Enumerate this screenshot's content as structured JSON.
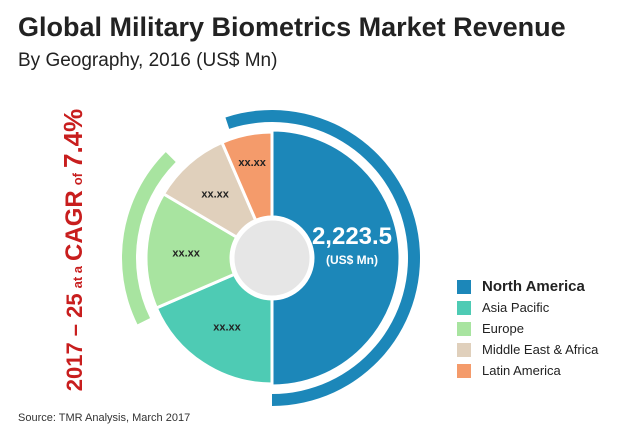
{
  "header": {
    "title": "Global Military Biometrics Market Revenue",
    "subtitle": "By Geography, 2016 (US$ Mn)"
  },
  "cagr": {
    "period": "2017 – 25",
    "at_a": "at a",
    "label": "CAGR",
    "of": "of",
    "value": "7.4%"
  },
  "center": {
    "value": "2,223.5",
    "unit": "(US$ Mn)"
  },
  "source": "Source: TMR Analysis, March 2017",
  "chart_data": {
    "type": "pie",
    "categories": [
      "North America",
      "Asia Pacific",
      "Europe",
      "Middle East & Africa",
      "Latin America"
    ],
    "values": [
      0.5,
      0.185,
      0.15,
      0.1,
      0.065
    ],
    "value_labels": [
      "2,223.5",
      "xx.xx",
      "xx.xx",
      "xx.xx",
      "xx.xx"
    ],
    "colors": [
      "#1c87b9",
      "#4ecbb4",
      "#a8e4a0",
      "#e0d0bc",
      "#f49b6b"
    ],
    "legend_position": "right",
    "highlighted": "North America"
  }
}
